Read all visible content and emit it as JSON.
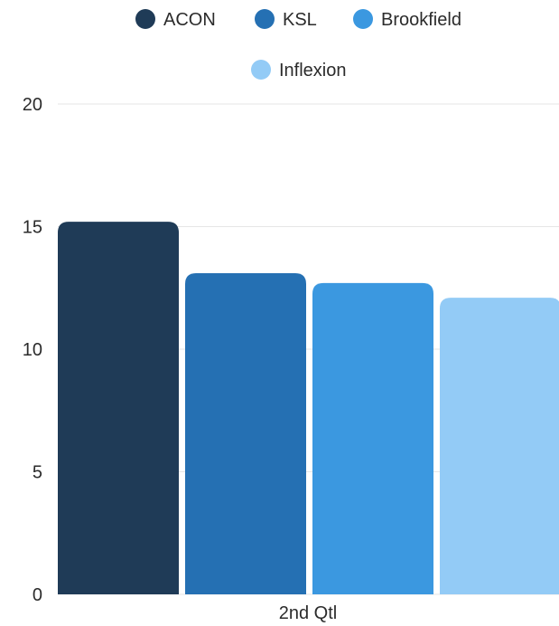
{
  "chart_data": {
    "type": "bar",
    "categories": [
      "2nd Qtl"
    ],
    "series": [
      {
        "name": "ACON",
        "values": [
          15.2
        ],
        "color": "#1f3b57"
      },
      {
        "name": "KSL",
        "values": [
          13.1
        ],
        "color": "#2570b3"
      },
      {
        "name": "Brookfield",
        "values": [
          12.7
        ],
        "color": "#3b98e0"
      },
      {
        "name": "Inflexion",
        "values": [
          12.1
        ],
        "color": "#93cbf6"
      }
    ],
    "y_ticks": [
      "0",
      "5",
      "10",
      "15",
      "20"
    ],
    "ylim": [
      0,
      20
    ],
    "grid": true,
    "legend_position": "top-center"
  }
}
